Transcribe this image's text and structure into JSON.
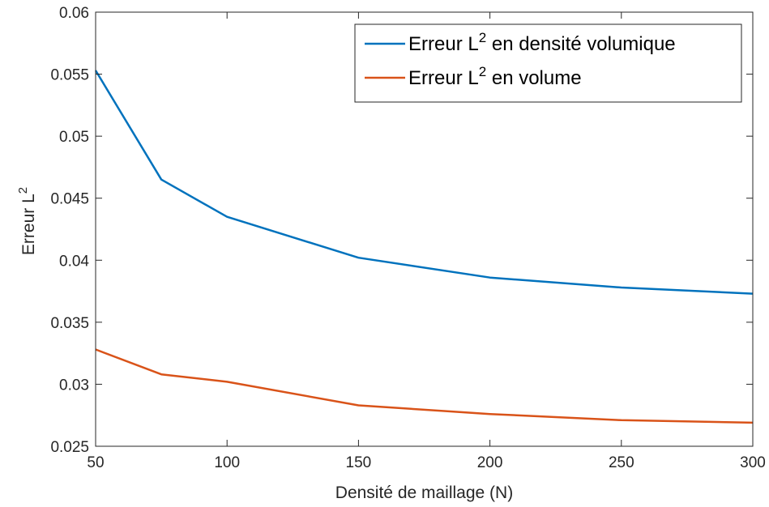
{
  "chart_data": {
    "type": "line",
    "xlabel": "Densité de maillage (N)",
    "ylabel": {
      "base": "Erreur L",
      "sup": "2"
    },
    "xlim": [
      50,
      300
    ],
    "ylim": [
      0.025,
      0.06
    ],
    "xticks": [
      50,
      100,
      150,
      200,
      250,
      300
    ],
    "xtick_labels": [
      "50",
      "100",
      "150",
      "200",
      "250",
      "300"
    ],
    "yticks": [
      0.025,
      0.03,
      0.035,
      0.04,
      0.045,
      0.05,
      0.055,
      0.06
    ],
    "ytick_labels": [
      "0.025",
      "0.03",
      "0.035",
      "0.04",
      "0.045",
      "0.05",
      "0.055",
      "0.06"
    ],
    "grid": false,
    "legend_position": "top-right",
    "x": [
      50,
      75,
      100,
      150,
      200,
      250,
      300
    ],
    "series": [
      {
        "name": "Erreur L2 en densité volumique",
        "label_parts": {
          "pre": "Erreur L",
          "sup": "2",
          "post": " en densité volumique"
        },
        "color": "#0072BD",
        "values": [
          0.0553,
          0.0465,
          0.0435,
          0.0402,
          0.0386,
          0.0378,
          0.0373
        ]
      },
      {
        "name": "Erreur L2 en volume",
        "label_parts": {
          "pre": "Erreur L",
          "sup": "2",
          "post": " en volume"
        },
        "color": "#D95319",
        "values": [
          0.0328,
          0.0308,
          0.0302,
          0.0283,
          0.0276,
          0.0271,
          0.0269
        ]
      }
    ]
  }
}
